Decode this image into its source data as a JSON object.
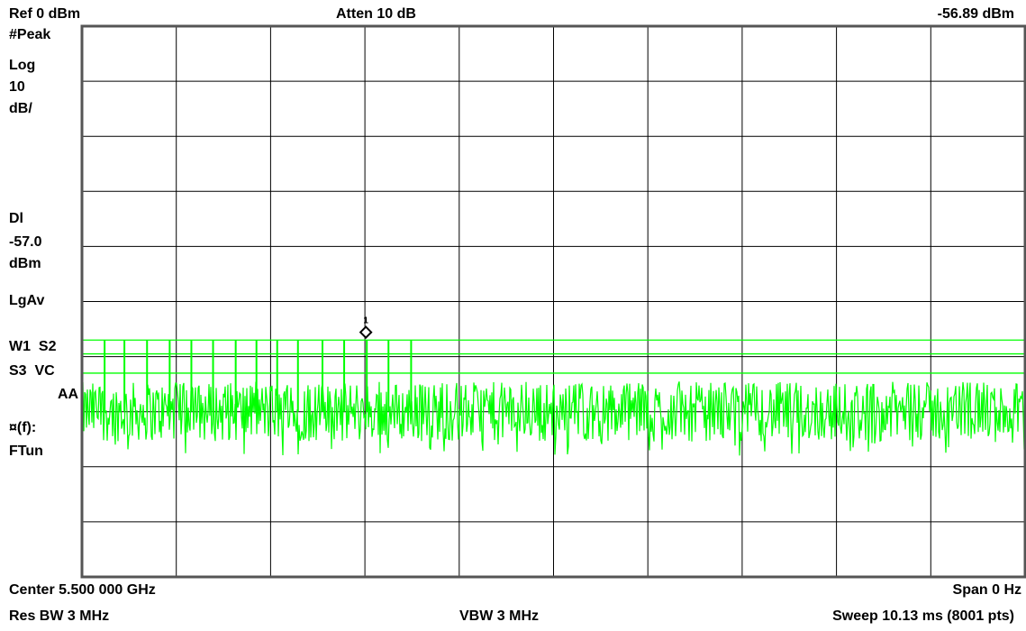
{
  "header": {
    "ref_level": "Ref 0 dBm",
    "attenuation": "Atten 10 dB",
    "marker_readout": "-56.89 dBm"
  },
  "side_panel": {
    "detector": "#Peak",
    "scale_type": "Log",
    "scale_value": "10",
    "scale_unit": "dB/",
    "display_line_label": "Dl",
    "display_line_value": "-57.0",
    "display_line_unit": "dBm",
    "averaging": "LgAv",
    "trace_line1": "W1  S2",
    "trace_line2": "S3  VC",
    "trace_line3": "AA",
    "func_label": "¤(f):",
    "func_value": "FTun"
  },
  "footer": {
    "center": "Center 5.500 000 GHz",
    "span": "Span 0 Hz",
    "res_bw": "Res BW 3 MHz",
    "vbw": "VBW 3 MHz",
    "sweep": "Sweep 10.13 ms (8001 pts)"
  },
  "chart_data": {
    "type": "line",
    "ylim": [
      -100,
      0
    ],
    "grid": true,
    "colors": {
      "trace": "#00ff00",
      "grid": "#000000",
      "frame": "#555555"
    },
    "display_lines_dBm": [
      -57.0,
      -59.5,
      -63.0
    ],
    "noise_floor_dBm": {
      "mean": -70,
      "min": -75,
      "max": -66
    },
    "burst_tops_dBm": [
      -57.0,
      -57.0,
      -57.0,
      -57.0,
      -57.0,
      -57.0,
      -57.0,
      -57.0,
      -57.0,
      -57.0,
      -57.0,
      -57.0,
      -57.0,
      -57.0,
      -57.0
    ],
    "burst_positions_fraction": [
      0.024,
      0.045,
      0.069,
      0.093,
      0.116,
      0.139,
      0.163,
      0.185,
      0.207,
      0.229,
      0.255,
      0.278,
      0.302,
      0.325,
      0.349
    ],
    "marker": {
      "label": "1",
      "x_fraction": 0.301,
      "value_dBm": -56.89
    }
  }
}
